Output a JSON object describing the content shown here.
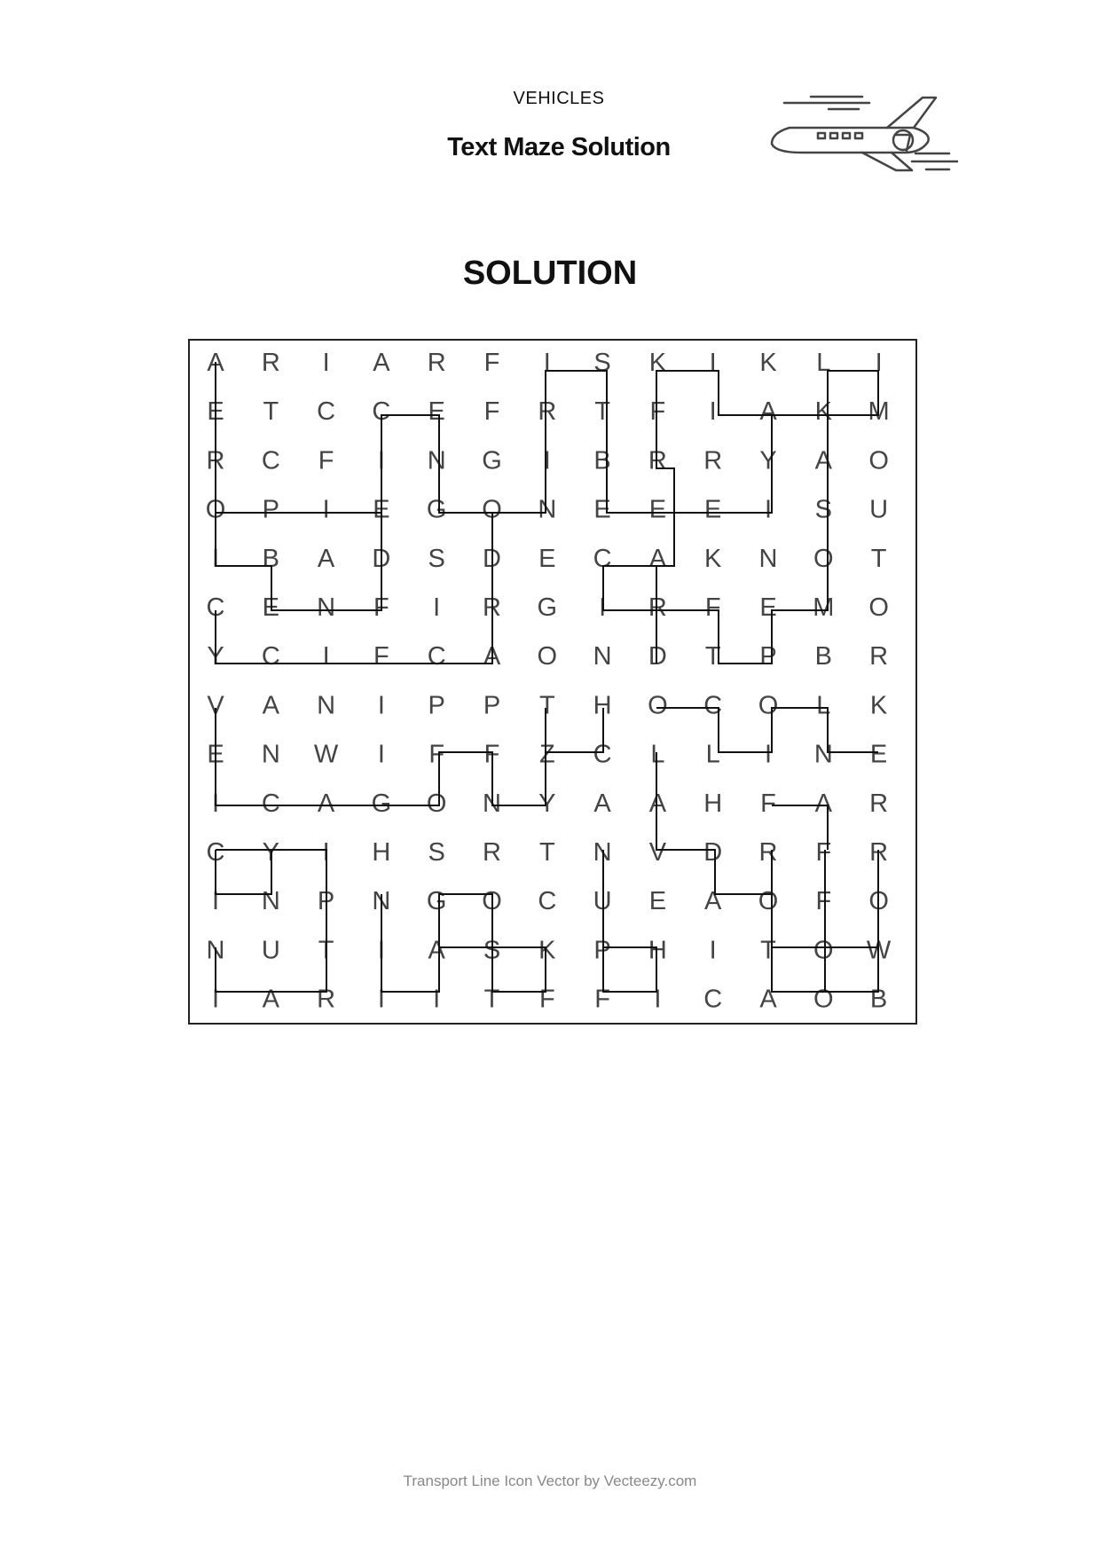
{
  "header": {
    "category": "VEHICLES",
    "title": "Text Maze Solution",
    "icon": "airplane-icon"
  },
  "heading": "SOLUTION",
  "maze": {
    "rows": [
      "ARIARFISKIKLI",
      "ETCCEFRTFIAKM",
      "RCFINGIBRRYAO",
      "OPIEGONEEEISU",
      "IBADSDECAKNOT",
      "CENFIRGIRFEMO",
      "YCIFCAONDTPBR",
      "VANIPPTHOCOLK",
      "ENWIFFZCLLINE",
      "ICAGONYAAHFAR",
      "CYIHSRTNVDRFR",
      "INPNGOCUEAOFO",
      "NUTIASKPHITOW",
      "IARIITFFICAOB"
    ]
  },
  "footer": "Transport Line Icon Vector by Vecteezy.com"
}
